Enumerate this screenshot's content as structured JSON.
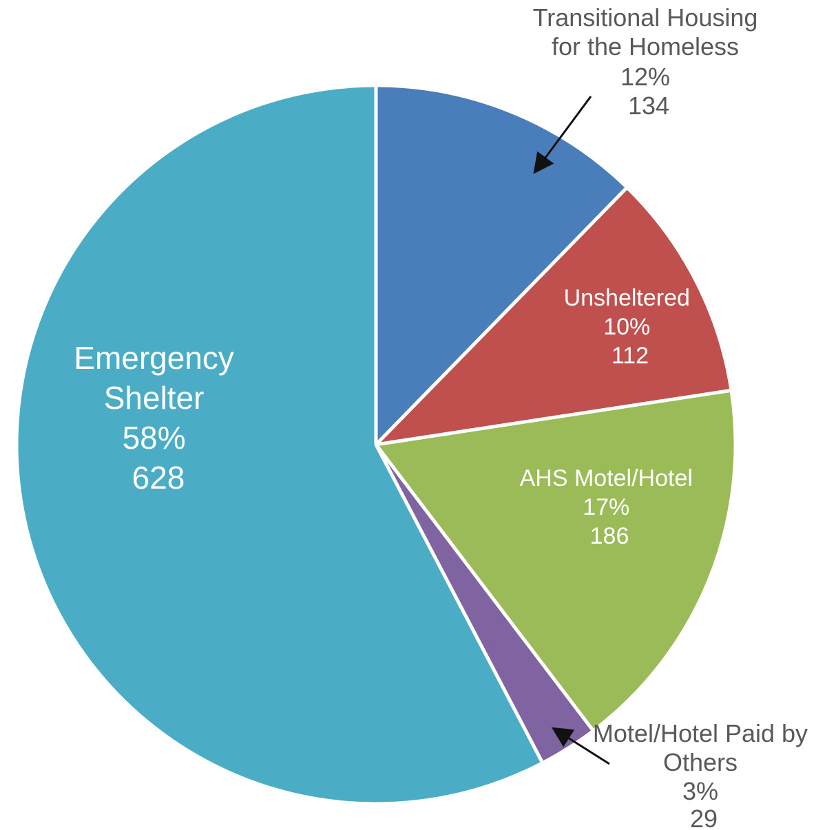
{
  "chart_data": {
    "type": "pie",
    "title": "",
    "start_angle_deg": 0,
    "direction": "clockwise",
    "slices": [
      {
        "name_lines": [
          "Transitional Housing",
          "for the Homeless"
        ],
        "percent_label": "12%",
        "value": 134,
        "value_label": "134",
        "color": "#4A7EBB",
        "label_color": "#595959",
        "callout": true
      },
      {
        "name_lines": [
          "Unsheltered"
        ],
        "percent_label": "10%",
        "value": 112,
        "value_label": "112",
        "color": "#C0504D",
        "label_color": "#FFFFFF",
        "callout": false
      },
      {
        "name_lines": [
          "AHS Motel/Hotel"
        ],
        "percent_label": "17%",
        "value": 186,
        "value_label": "186",
        "color": "#9BBB59",
        "label_color": "#FFFFFF",
        "callout": false
      },
      {
        "name_lines": [
          "Motel/Hotel Paid by",
          "Others"
        ],
        "percent_label": "3%",
        "value": 29,
        "value_label": "29",
        "color": "#8064A2",
        "label_color": "#595959",
        "callout": true
      },
      {
        "name_lines": [
          "Emergency",
          "Shelter"
        ],
        "percent_label": "58%",
        "value": 628,
        "value_label": "628",
        "color": "#4BACC6",
        "label_color": "#FFFFFF",
        "callout": false
      }
    ]
  }
}
